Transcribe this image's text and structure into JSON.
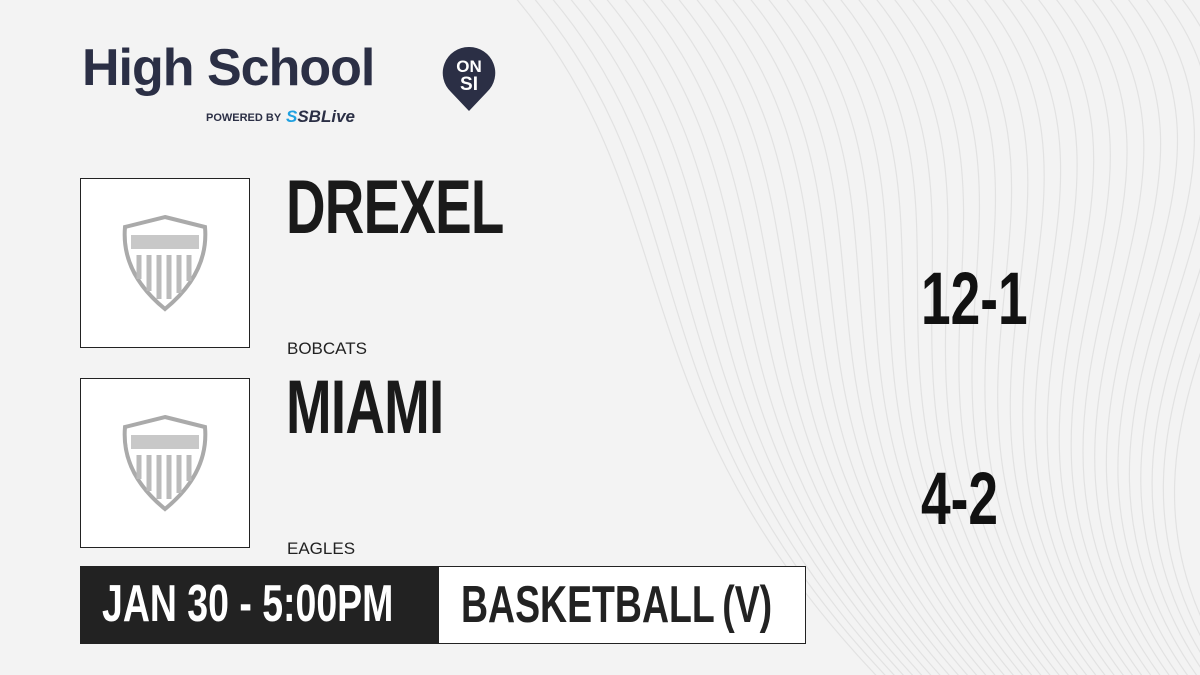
{
  "brand": {
    "title": "High School",
    "badge_top": "ON",
    "badge_bottom": "SI",
    "powered_by": "POWERED BY",
    "partner_prefix": "S",
    "partner": "SBLive",
    "text_color": "#2b2f45",
    "accent": "#1ea0e0"
  },
  "teams": [
    {
      "name": "DREXEL",
      "mascot": "BOBCATS",
      "record": "12-1",
      "logo": "shield-icon"
    },
    {
      "name": "MIAMI",
      "mascot": "EAGLES",
      "record": "4-2",
      "logo": "shield-icon"
    }
  ],
  "game": {
    "datetime": "JAN 30 - 5:00PM",
    "sport": "BASKETBALL (V)"
  }
}
